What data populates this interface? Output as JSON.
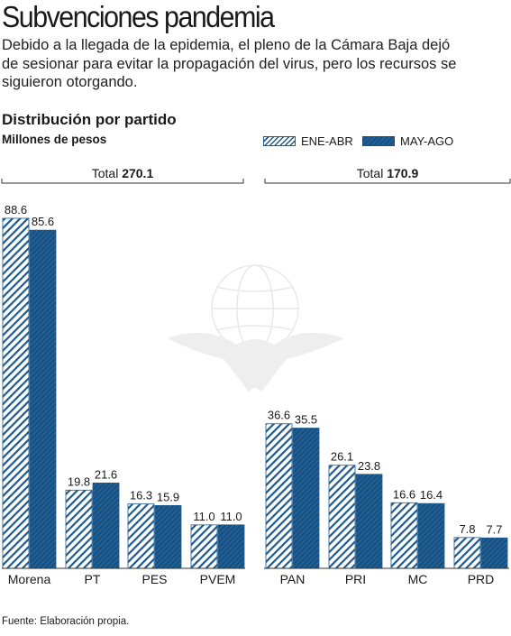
{
  "header": {
    "title": "Subvenciones pandemia",
    "subtitle": "Debido a la llegada de la epidemia, el pleno de la Cámara Baja dejó de sesionar para evitar la propagación del virus, pero los recursos se siguieron otorgando."
  },
  "chart_data": {
    "type": "bar",
    "title": "Distribución por partido",
    "ylabel": "Millones de pesos",
    "legend_position": "top-right",
    "categories": [
      "Morena",
      "PT",
      "PES",
      "PVEM",
      "PAN",
      "PRI",
      "MC",
      "PRD"
    ],
    "series": [
      {
        "name": "ENE-ABR",
        "values": [
          88.6,
          19.8,
          16.3,
          11.0,
          36.6,
          26.1,
          16.6,
          7.8
        ],
        "color": "#1e5a8e"
      },
      {
        "name": "MAY-AGO",
        "values": [
          85.6,
          21.6,
          15.9,
          11.0,
          35.5,
          23.8,
          16.4,
          7.7
        ],
        "color": "#1a4f80"
      }
    ],
    "value_labels": {
      "ENE-ABR": [
        "88.6",
        "19.8",
        "16.3",
        "11.0",
        "36.6",
        "26.1",
        "16.6",
        "7.8"
      ],
      "MAY-AGO": [
        "85.6",
        "21.6",
        "15.9",
        "11.0",
        "35.5",
        "23.8",
        "16.4",
        "7.7"
      ]
    },
    "groups": [
      {
        "total_label": "Total",
        "total_value": "270.1",
        "categories": [
          "Morena",
          "PT",
          "PES",
          "PVEM"
        ]
      },
      {
        "total_label": "Total",
        "total_value": "170.9",
        "categories": [
          "PAN",
          "PRI",
          "MC",
          "PRD"
        ]
      }
    ],
    "ylim": [
      0,
      90
    ],
    "grid": false
  },
  "footer": {
    "source": "Fuente: Elaboración propia."
  }
}
